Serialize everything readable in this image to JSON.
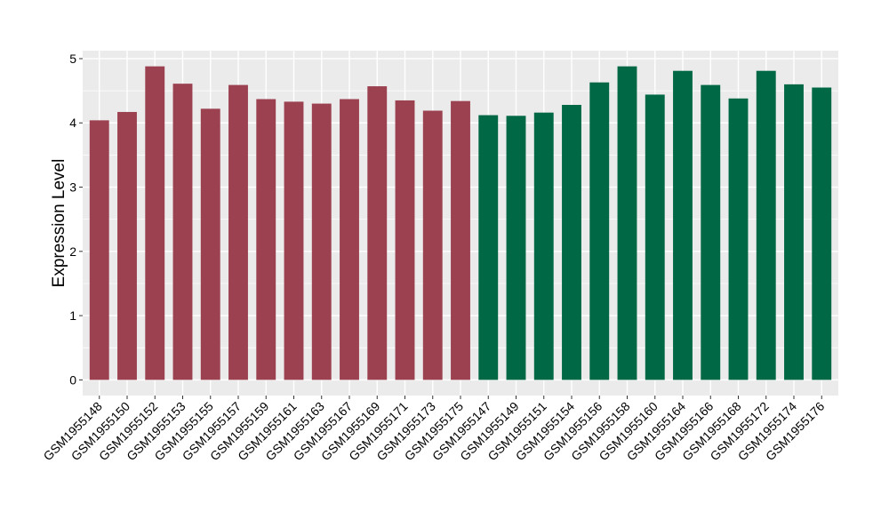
{
  "chart_data": {
    "type": "bar",
    "title": "",
    "xlabel": "",
    "ylabel": "Expression Level",
    "ylim": [
      -0.244,
      5.124
    ],
    "yticks": [
      0,
      1,
      2,
      3,
      4,
      5
    ],
    "grid": true,
    "legend": "none",
    "categories": [
      "GSM1955148",
      "GSM1955150",
      "GSM1955152",
      "GSM1955153",
      "GSM1955155",
      "GSM1955157",
      "GSM1955159",
      "GSM1955161",
      "GSM1955163",
      "GSM1955167",
      "GSM1955169",
      "GSM1955171",
      "GSM1955173",
      "GSM1955175",
      "GSM1955147",
      "GSM1955149",
      "GSM1955151",
      "GSM1955154",
      "GSM1955156",
      "GSM1955158",
      "GSM1955160",
      "GSM1955164",
      "GSM1955166",
      "GSM1955168",
      "GSM1955172",
      "GSM1955174",
      "GSM1955176"
    ],
    "values": [
      4.04,
      4.17,
      4.88,
      4.61,
      4.22,
      4.59,
      4.37,
      4.33,
      4.3,
      4.37,
      4.57,
      4.35,
      4.19,
      4.34,
      4.12,
      4.11,
      4.16,
      4.28,
      4.63,
      4.88,
      4.44,
      4.81,
      4.59,
      4.38,
      4.81,
      4.6,
      4.55
    ],
    "groups": [
      0,
      0,
      0,
      0,
      0,
      0,
      0,
      0,
      0,
      0,
      0,
      0,
      0,
      0,
      1,
      1,
      1,
      1,
      1,
      1,
      1,
      1,
      1,
      1,
      1,
      1,
      1
    ],
    "colors": [
      "#9b4150",
      "#006845"
    ],
    "panel_background": "#ebebeb",
    "grid_color": "#ffffff"
  }
}
